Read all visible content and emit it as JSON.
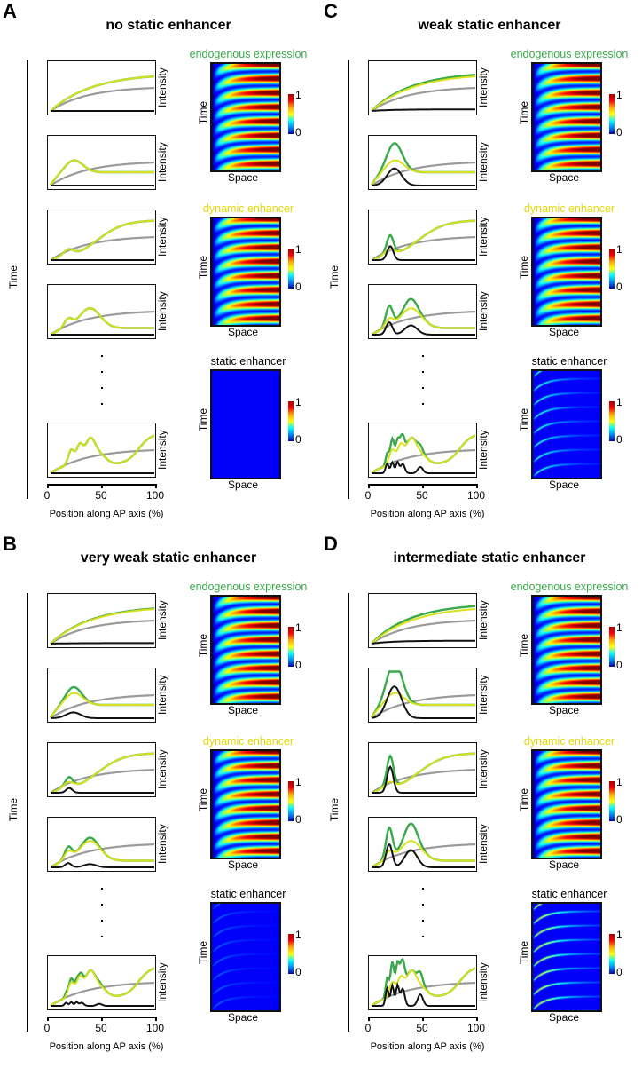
{
  "colors": {
    "endogenous": "#3aa94a",
    "dynamic": "#d8e11c",
    "gray": "#9a9a9a",
    "static": "#111111"
  },
  "labels": {
    "time": "Time",
    "intensity": "Intensity",
    "space": "Space",
    "xlabel": "Position along AP axis (%)",
    "xticks": [
      "0",
      "50",
      "100"
    ],
    "cb_max": "1",
    "cb_min": "0",
    "endogenous": "endogenous expression",
    "dynamic": "dynamic enhancer",
    "static": "static enhancer"
  },
  "panels": [
    {
      "letter": "A",
      "title": "no static enhancer",
      "static_strength": 0
    },
    {
      "letter": "C",
      "title": "weak static enhancer",
      "static_strength": 0.35
    },
    {
      "letter": "B",
      "title": "very weak static enhancer",
      "static_strength": 0.12
    },
    {
      "letter": "D",
      "title": "intermediate static enhancer",
      "static_strength": 0.65
    }
  ]
}
